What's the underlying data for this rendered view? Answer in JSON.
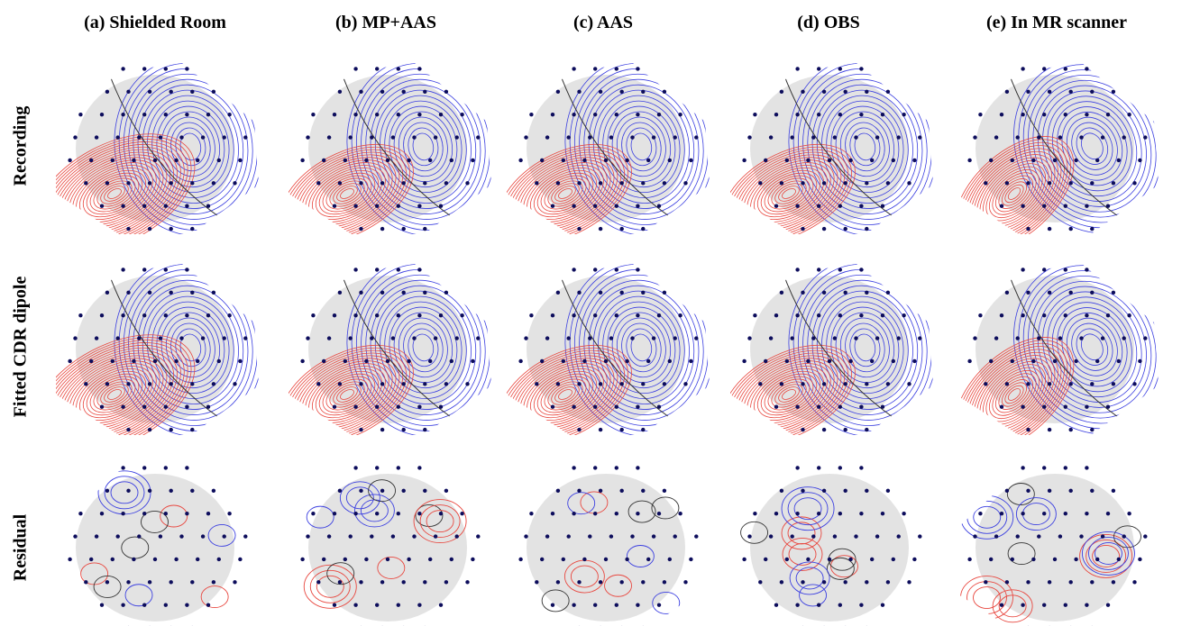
{
  "columns": [
    {
      "title": "(a) Shielded Room"
    },
    {
      "title": "(b) MP+AAS"
    },
    {
      "title": "(c) AAS"
    },
    {
      "title": "(d) OBS"
    },
    {
      "title": "(e) In MR scanner"
    }
  ],
  "rows": [
    {
      "label": "Recording"
    },
    {
      "label": "Fitted CDR dipole"
    },
    {
      "label": "Residual"
    }
  ],
  "colors": {
    "positive": "#e8473f",
    "negative": "#3b3fe0",
    "zero": "#333333",
    "head": "#e3e3e3",
    "electrode": "#0d0d5c"
  }
}
